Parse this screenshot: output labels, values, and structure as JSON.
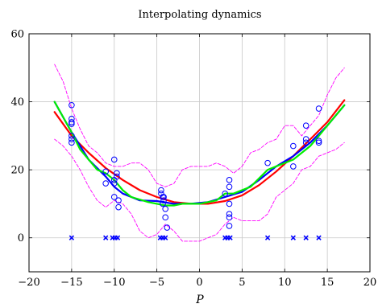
{
  "chart_data": {
    "type": "line",
    "title": "Interpolating dynamics",
    "xlabel": "P",
    "ylabel": "",
    "xlim": [
      -20,
      20
    ],
    "ylim": [
      -10,
      60
    ],
    "xticks": [
      -20,
      -15,
      -10,
      -5,
      0,
      5,
      10,
      15,
      20
    ],
    "yticks": [
      0,
      20,
      40,
      60
    ],
    "grid": true,
    "colors": {
      "red": "#ff0000",
      "blue": "#0000ff",
      "green": "#00ee00",
      "magenta": "#ff00ff",
      "markers": "#0000ff"
    },
    "series": [
      {
        "style": "line",
        "color": "#ff0000",
        "x": [
          -17,
          -15,
          -13,
          -11,
          -9,
          -7,
          -5,
          -3,
          -1,
          1,
          3,
          5,
          7,
          9,
          11,
          13,
          15,
          17
        ],
        "y": [
          37,
          30,
          25,
          20.5,
          17,
          14,
          12,
          10.5,
          10,
          10,
          10.8,
          12.5,
          15.5,
          19.5,
          24,
          29,
          34,
          40.5
        ]
      },
      {
        "style": "line",
        "color": "#0000ff",
        "x": [
          -17,
          -15,
          -13,
          -11,
          -10,
          -9,
          -7,
          -5,
          -3,
          -1,
          1,
          3,
          5,
          7,
          9,
          11,
          13,
          15,
          17
        ],
        "y": [
          40,
          31,
          23,
          18,
          15,
          13,
          11,
          10.8,
          10,
          10,
          10.5,
          12,
          13.5,
          17,
          21,
          24,
          28,
          33,
          39
        ]
      },
      {
        "style": "line",
        "color": "#00ee00",
        "x": [
          -17,
          -15,
          -14,
          -12,
          -11,
          -10,
          -9,
          -8,
          -6,
          -5,
          -4,
          -3,
          -2,
          0,
          1,
          2,
          3,
          4,
          6,
          8,
          9,
          11,
          12,
          13,
          14,
          15,
          17
        ],
        "y": [
          40,
          31,
          26,
          20,
          19,
          17,
          14,
          12,
          10.5,
          10,
          9.5,
          9.5,
          10,
          10,
          10.5,
          11,
          13,
          13,
          15,
          20,
          21,
          23,
          25,
          27,
          30,
          33,
          39
        ]
      },
      {
        "style": "dashed",
        "color": "#ff00ff",
        "x": [
          -17,
          -16,
          -15,
          -14,
          -13,
          -12,
          -11,
          -10,
          -9,
          -8,
          -7,
          -6,
          -5,
          -4,
          -3,
          -2,
          -1,
          0,
          1,
          2,
          3,
          4,
          5,
          6,
          7,
          8,
          9,
          10,
          11,
          12,
          13,
          14,
          15,
          16,
          17
        ],
        "y": [
          51,
          46,
          38,
          32,
          27,
          25,
          22,
          21,
          21,
          22,
          22,
          20,
          16,
          15,
          16,
          20,
          21,
          21,
          21,
          22,
          21,
          19,
          21,
          25,
          26,
          28,
          29,
          33,
          33,
          30,
          33,
          36,
          42,
          47,
          50
        ]
      },
      {
        "style": "dashed",
        "color": "#ff00ff",
        "x": [
          -17,
          -16,
          -15,
          -14,
          -13,
          -12,
          -11,
          -10,
          -9,
          -8,
          -7,
          -6,
          -5,
          -4,
          -3,
          -2,
          -1,
          0,
          1,
          2,
          3,
          4,
          5,
          6,
          7,
          8,
          9,
          10,
          11,
          12,
          13,
          14,
          15,
          16,
          17
        ],
        "y": [
          29,
          27,
          24,
          20,
          15,
          11,
          9,
          11,
          10,
          7,
          2,
          0,
          1,
          4,
          2,
          -1,
          -1,
          -1,
          0,
          1,
          4,
          6,
          5,
          5,
          5,
          7,
          12,
          14,
          16,
          20,
          21,
          24,
          25,
          26,
          28
        ]
      },
      {
        "style": "circles",
        "color": "#0000ff",
        "x": [
          -15,
          -15,
          -15,
          -15,
          -15,
          -15,
          -15,
          -11,
          -11,
          -10,
          -10,
          -10,
          -10,
          -9.7,
          -9.7,
          -9.5,
          -9.5,
          -4.5,
          -4.5,
          -4.3,
          -4.3,
          -4.2,
          -4.2,
          -4.0,
          -4.0,
          -3.8,
          3.0,
          3.5,
          3.5,
          3.5,
          3.5,
          3.5,
          3.5,
          8.0,
          11.0,
          11.0,
          12.5,
          12.5,
          12.5,
          14.0,
          14.0,
          14.0
        ],
        "y": [
          39,
          35,
          34,
          33.5,
          30,
          29,
          28,
          19.5,
          16,
          23,
          17,
          16,
          12,
          19,
          18,
          11,
          9,
          14,
          13,
          12,
          10,
          12,
          11,
          8.5,
          6,
          3,
          13,
          17,
          15,
          10,
          7,
          6,
          3.5,
          22,
          27,
          21,
          33,
          29,
          28,
          38,
          28.5,
          28
        ]
      },
      {
        "style": "crosses",
        "color": "#0000ff",
        "x": [
          -15,
          -11,
          -10.2,
          -9.9,
          -9.6,
          -4.6,
          -4.3,
          -4.0,
          3.0,
          3.3,
          3.6,
          8.0,
          11.0,
          12.5,
          14.0
        ],
        "y": [
          0,
          0,
          0,
          0,
          0,
          0,
          0,
          0,
          0,
          0,
          0,
          0,
          0,
          0,
          0
        ]
      }
    ]
  }
}
